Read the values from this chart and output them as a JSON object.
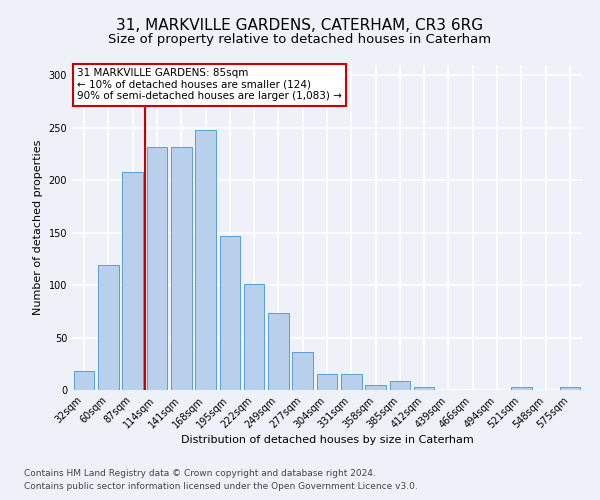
{
  "title1": "31, MARKVILLE GARDENS, CATERHAM, CR3 6RG",
  "title2": "Size of property relative to detached houses in Caterham",
  "xlabel": "Distribution of detached houses by size in Caterham",
  "ylabel": "Number of detached properties",
  "categories": [
    "32sqm",
    "60sqm",
    "87sqm",
    "114sqm",
    "141sqm",
    "168sqm",
    "195sqm",
    "222sqm",
    "249sqm",
    "277sqm",
    "304sqm",
    "331sqm",
    "358sqm",
    "385sqm",
    "412sqm",
    "439sqm",
    "466sqm",
    "494sqm",
    "521sqm",
    "548sqm",
    "575sqm"
  ],
  "values": [
    18,
    119,
    208,
    232,
    232,
    248,
    147,
    101,
    73,
    36,
    15,
    15,
    5,
    9,
    3,
    0,
    0,
    0,
    3,
    0,
    3
  ],
  "bar_color": "#b8d0eb",
  "bar_edge_color": "#5a9fd4",
  "annotation_text": "31 MARKVILLE GARDENS: 85sqm\n← 10% of detached houses are smaller (124)\n90% of semi-detached houses are larger (1,083) →",
  "annotation_box_color": "#ffffff",
  "annotation_box_edge": "#cc0000",
  "vline_color": "#cc0000",
  "vline_xindex": 2.5,
  "ylim": [
    0,
    310
  ],
  "yticks": [
    0,
    50,
    100,
    150,
    200,
    250,
    300
  ],
  "footnote1": "Contains HM Land Registry data © Crown copyright and database right 2024.",
  "footnote2": "Contains public sector information licensed under the Open Government Licence v3.0.",
  "background_color": "#eef2f8",
  "grid_color": "#ffffff",
  "title1_fontsize": 11,
  "title2_fontsize": 9.5,
  "xlabel_fontsize": 8,
  "ylabel_fontsize": 8,
  "tick_fontsize": 7,
  "annotation_fontsize": 7.5,
  "footnote_fontsize": 6.5
}
